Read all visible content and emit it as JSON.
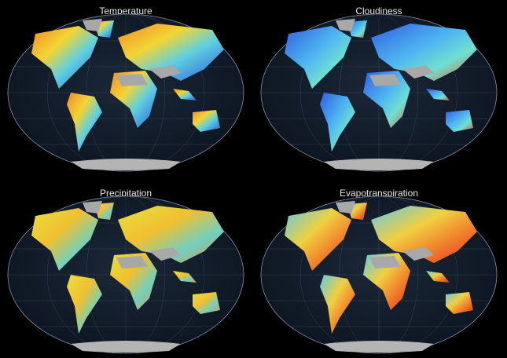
{
  "panels": [
    {
      "title": "Temperature"
    },
    {
      "title": "Cloudiness"
    },
    {
      "title": "Precipitation"
    },
    {
      "title": "Evapotranspiration"
    }
  ]
}
